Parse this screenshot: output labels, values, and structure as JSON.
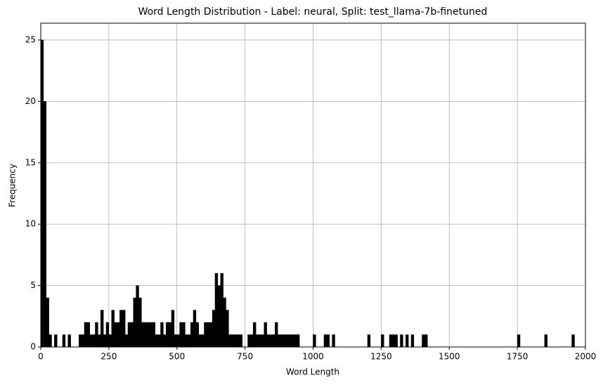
{
  "chart_data": {
    "type": "histogram",
    "title": "Word Length Distribution - Label: neural, Split: test_llama-7b-finetuned",
    "x_label": "Word Length",
    "y_label": "Frequency",
    "bins": [
      0,
      10,
      20,
      30,
      40,
      50,
      60,
      70,
      80,
      90,
      100,
      110,
      120,
      130,
      140,
      150,
      160,
      170,
      180,
      190,
      200,
      210,
      220,
      230,
      240,
      250,
      260,
      270,
      280,
      290,
      300,
      310,
      320,
      330,
      340,
      350,
      360,
      370,
      380,
      390,
      400,
      410,
      420,
      430,
      440,
      450,
      460,
      470,
      480,
      490,
      500,
      510,
      520,
      530,
      540,
      550,
      560,
      570,
      580,
      590,
      600,
      610,
      620,
      630,
      640,
      650,
      660,
      670,
      680,
      690,
      700,
      710,
      720,
      730,
      740,
      750,
      760,
      770,
      780,
      790,
      800,
      810,
      820,
      830,
      840,
      850,
      860,
      870,
      880,
      890,
      900,
      910,
      920,
      930,
      940,
      950,
      960,
      970,
      980,
      990,
      1000,
      1010,
      1020,
      1030,
      1040,
      1050,
      1060,
      1070,
      1080,
      1090,
      1100,
      1110,
      1120,
      1130,
      1140,
      1150,
      1160,
      1170,
      1180,
      1190,
      1200,
      1210,
      1220,
      1230,
      1240,
      1250,
      1260,
      1270,
      1280,
      1290,
      1300,
      1310,
      1320,
      1330,
      1340,
      1350,
      1360,
      1370,
      1380,
      1390,
      1400,
      1410,
      1420,
      1430,
      1440,
      1450,
      1460,
      1470,
      1480,
      1490,
      1500,
      1510,
      1520,
      1530,
      1540,
      1550,
      1560,
      1570,
      1580,
      1590,
      1600,
      1610,
      1620,
      1630,
      1640,
      1650,
      1660,
      1670,
      1680,
      1690,
      1700,
      1710,
      1720,
      1730,
      1740,
      1750,
      1760,
      1770,
      1780,
      1790,
      1800,
      1810,
      1820,
      1830,
      1840,
      1850,
      1860,
      1870,
      1880,
      1890,
      1900,
      1910,
      1920,
      1930,
      1940,
      1950,
      1960,
      1970,
      1980,
      1990,
      2000
    ],
    "values": [
      25,
      20,
      4,
      1,
      0,
      1,
      0,
      0,
      1,
      0,
      1,
      0,
      0,
      0,
      1,
      1,
      2,
      2,
      1,
      1,
      2,
      1,
      3,
      1,
      2,
      1,
      3,
      2,
      2,
      3,
      3,
      1,
      2,
      2,
      4,
      5,
      4,
      2,
      2,
      2,
      2,
      2,
      1,
      1,
      2,
      1,
      2,
      2,
      3,
      1,
      1,
      2,
      2,
      1,
      1,
      2,
      3,
      2,
      1,
      1,
      2,
      2,
      2,
      3,
      6,
      5,
      6,
      4,
      3,
      1,
      1,
      1,
      1,
      1,
      0,
      0,
      1,
      1,
      2,
      1,
      1,
      1,
      2,
      1,
      1,
      1,
      2,
      1,
      1,
      1,
      1,
      1,
      1,
      1,
      1,
      0,
      0,
      0,
      0,
      0,
      1,
      0,
      0,
      0,
      1,
      1,
      0,
      1,
      0,
      0,
      0,
      0,
      0,
      0,
      0,
      0,
      0,
      0,
      0,
      0,
      1,
      0,
      0,
      0,
      0,
      1,
      0,
      0,
      1,
      1,
      1,
      0,
      1,
      0,
      1,
      0,
      1,
      0,
      0,
      0,
      1,
      1,
      0,
      0,
      0,
      0,
      0,
      0,
      0,
      0,
      0,
      0,
      0,
      0,
      0,
      0,
      0,
      0,
      0,
      0,
      0,
      0,
      0,
      0,
      0,
      0,
      0,
      0,
      0,
      0,
      0,
      0,
      0,
      0,
      0,
      1,
      0,
      0,
      0,
      0,
      0,
      0,
      0,
      0,
      0,
      1,
      0,
      0,
      0,
      0,
      0,
      0,
      0,
      0,
      0,
      1,
      0,
      0,
      0,
      0
    ],
    "color": "#000000",
    "xlim": [
      0,
      2000
    ],
    "xticks": [
      0,
      250,
      500,
      750,
      1000,
      1250,
      1500,
      1750,
      2000
    ],
    "ylim": [
      0,
      26.37
    ],
    "yticks": [
      0,
      5,
      10,
      15,
      20,
      25
    ],
    "grid": true
  }
}
